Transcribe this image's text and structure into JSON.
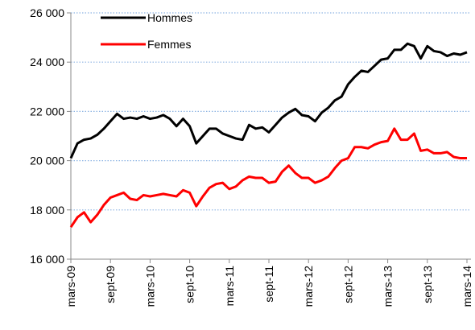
{
  "chart_data": {
    "type": "line",
    "categories": [
      "mars-09",
      null,
      null,
      null,
      null,
      null,
      "sept-09",
      null,
      null,
      null,
      null,
      null,
      "mars-10",
      null,
      null,
      null,
      null,
      null,
      "sept-10",
      null,
      null,
      null,
      null,
      null,
      "mars-11",
      null,
      null,
      null,
      null,
      null,
      "sept-11",
      null,
      null,
      null,
      null,
      null,
      "mars-12",
      null,
      null,
      null,
      null,
      null,
      "sept-12",
      null,
      null,
      null,
      null,
      null,
      "mars-13",
      null,
      null,
      null,
      null,
      null,
      "sept-13",
      null,
      null,
      null,
      null,
      null,
      "mars-14"
    ],
    "series": [
      {
        "name": "Hommes",
        "color": "#000000",
        "values": [
          20100,
          20700,
          20850,
          20900,
          21050,
          21300,
          21600,
          21900,
          21700,
          21750,
          21700,
          21800,
          21700,
          21750,
          21850,
          21700,
          21400,
          21700,
          21400,
          20700,
          21000,
          21300,
          21300,
          21100,
          21000,
          20900,
          20850,
          21450,
          21300,
          21350,
          21150,
          21450,
          21750,
          21950,
          22100,
          21850,
          21800,
          21600,
          21950,
          22150,
          22450,
          22600,
          23100,
          23400,
          23650,
          23600,
          23850,
          24100,
          24150,
          24500,
          24500,
          24750,
          24650,
          24150,
          24650,
          24450,
          24400,
          24250,
          24350,
          24300,
          24400
        ]
      },
      {
        "name": "Femmes",
        "color": "#ff0000",
        "values": [
          17300,
          17700,
          17900,
          17500,
          17800,
          18200,
          18500,
          18600,
          18700,
          18450,
          18400,
          18600,
          18550,
          18600,
          18650,
          18600,
          18550,
          18800,
          18700,
          18150,
          18550,
          18900,
          19050,
          19100,
          18850,
          18950,
          19200,
          19350,
          19300,
          19300,
          19100,
          19150,
          19550,
          19800,
          19500,
          19300,
          19300,
          19100,
          19200,
          19350,
          19700,
          20000,
          20100,
          20550,
          20550,
          20500,
          20650,
          20750,
          20800,
          21300,
          20850,
          20850,
          21100,
          20400,
          20450,
          20300,
          20300,
          20350,
          20150,
          20100,
          20100
        ]
      }
    ],
    "ylim": [
      16000,
      26000
    ],
    "yticks": [
      {
        "value": 16000,
        "label": "16 000"
      },
      {
        "value": 18000,
        "label": "18 000"
      },
      {
        "value": 20000,
        "label": "20 000"
      },
      {
        "value": 22000,
        "label": "22 000"
      },
      {
        "value": 24000,
        "label": "24 000"
      },
      {
        "value": 26000,
        "label": "26 000"
      }
    ],
    "grid": true,
    "legend": "upper left"
  }
}
